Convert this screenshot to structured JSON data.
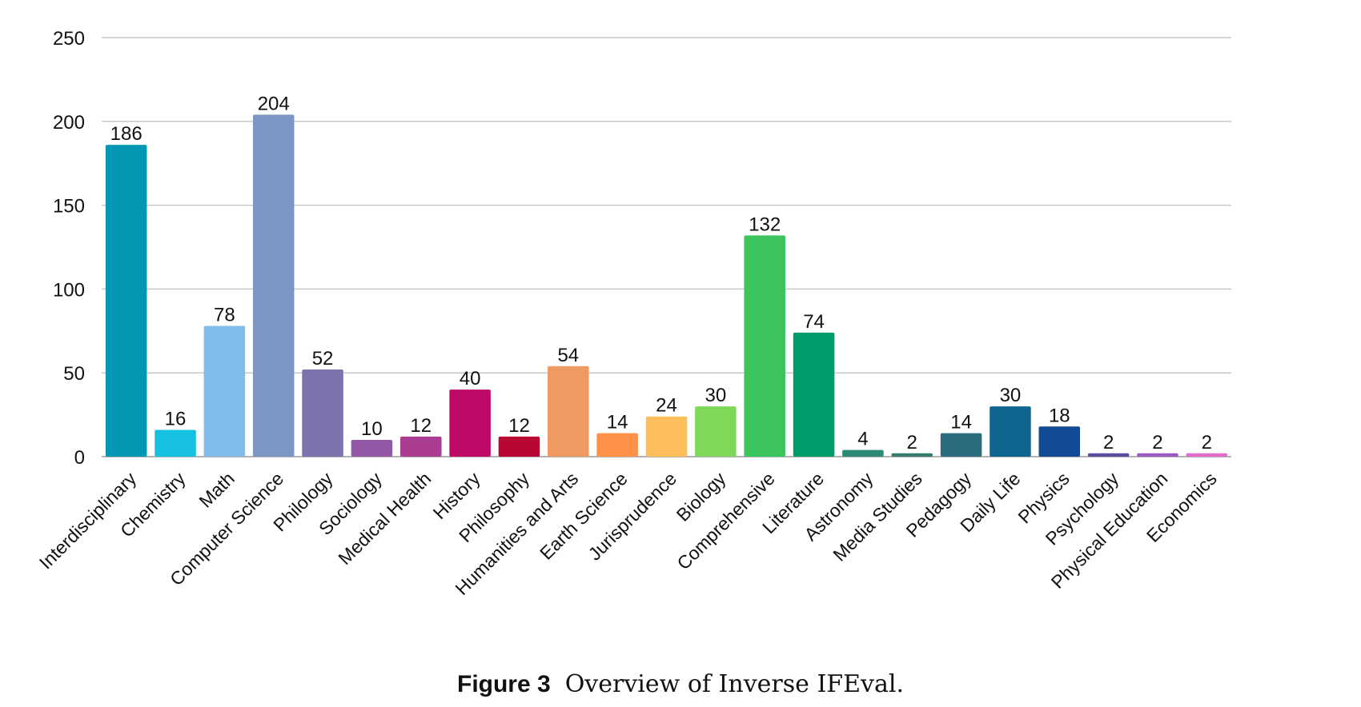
{
  "chart_data": {
    "type": "bar",
    "categories": [
      "Interdisciplinary",
      "Chemistry",
      "Math",
      "Computer Science",
      "Philology",
      "Sociology",
      "Medical Health",
      "History",
      "Philosophy",
      "Humanities and Arts",
      "Earth Science",
      "Jurisprudence",
      "Biology",
      "Comprehensive",
      "Literature",
      "Astronomy",
      "Media Studies",
      "Pedagogy",
      "Daily Life",
      "Physics",
      "Psychology",
      "Physical Education",
      "Economics"
    ],
    "values": [
      186,
      16,
      78,
      204,
      52,
      10,
      12,
      40,
      12,
      54,
      14,
      24,
      30,
      132,
      74,
      4,
      2,
      14,
      30,
      18,
      2,
      2,
      2
    ],
    "colors": [
      "#0397B3",
      "#16C0E0",
      "#80BCEA",
      "#7D95C3",
      "#7E73AD",
      "#9359A6",
      "#AA3C91",
      "#BE0A66",
      "#B80733",
      "#EE9A60",
      "#FF9148",
      "#FFBE5C",
      "#80D85A",
      "#3CC45E",
      "#009D6C",
      "#2D8B75",
      "#347A6F",
      "#2B6C7E",
      "#0F6590",
      "#124A93",
      "#5B4A9E",
      "#9C59C4",
      "#E36BC8"
    ],
    "yticks": [
      0,
      50,
      100,
      150,
      200,
      250
    ],
    "ylim": [
      0,
      250
    ],
    "grid": true,
    "title": "",
    "xlabel": "",
    "ylabel": ""
  },
  "caption": {
    "figure_label": "Figure 3",
    "text": "Overview of Inverse IFEval."
  }
}
